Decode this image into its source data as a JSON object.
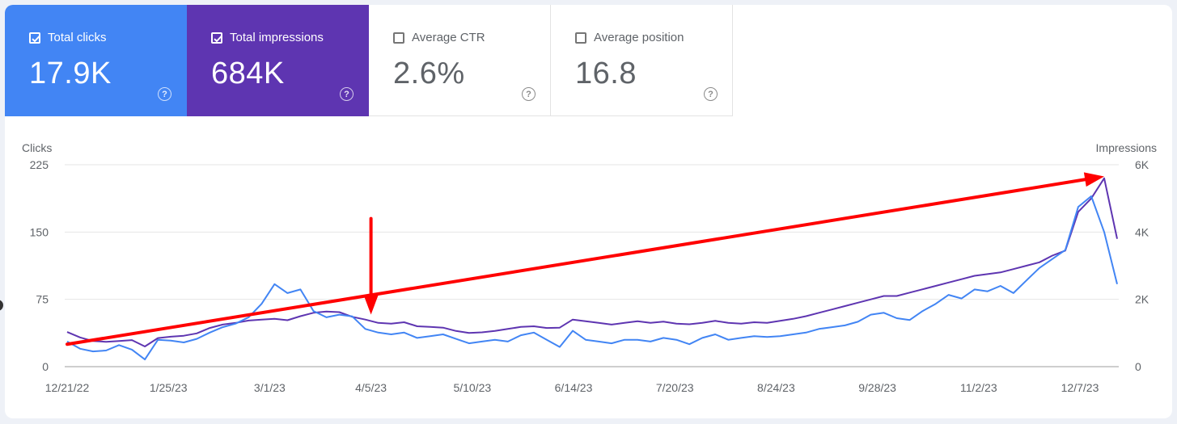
{
  "cards": [
    {
      "label": "Total clicks",
      "value": "17.9K",
      "checked": true
    },
    {
      "label": "Total impressions",
      "value": "684K",
      "checked": true
    },
    {
      "label": "Average CTR",
      "value": "2.6%",
      "checked": false
    },
    {
      "label": "Average position",
      "value": "16.8",
      "checked": false
    }
  ],
  "help_glyph": "?",
  "colors": {
    "clicks": "#4285f4",
    "impressions": "#5e35b1",
    "annotation": "#ff0000"
  },
  "chart_data": {
    "type": "line",
    "axes": {
      "left": {
        "label": "Clicks",
        "ticks": [
          "225",
          "150",
          "75",
          "0"
        ],
        "ylim": [
          0,
          225
        ]
      },
      "right": {
        "label": "Impressions",
        "ticks": [
          "6K",
          "4K",
          "2K",
          "0"
        ],
        "ylim": [
          0,
          6000
        ]
      }
    },
    "x_ticks": [
      "12/21/22",
      "1/25/23",
      "3/1/23",
      "4/5/23",
      "5/10/23",
      "6/14/23",
      "7/20/23",
      "8/24/23",
      "9/28/23",
      "11/2/23",
      "12/7/23"
    ],
    "series": [
      {
        "name": "Clicks",
        "axis": "left",
        "values": [
          28,
          20,
          17,
          18,
          24,
          19,
          8,
          30,
          29,
          27,
          31,
          38,
          44,
          48,
          55,
          70,
          92,
          82,
          86,
          62,
          55,
          58,
          56,
          42,
          38,
          36,
          38,
          32,
          34,
          36,
          31,
          26,
          28,
          30,
          28,
          35,
          38,
          30,
          22,
          40,
          30,
          28,
          26,
          30,
          30,
          28,
          32,
          30,
          25,
          32,
          36,
          30,
          32,
          34,
          33,
          34,
          36,
          38,
          42,
          44,
          46,
          50,
          58,
          60,
          54,
          52,
          62,
          70,
          80,
          76,
          86,
          84,
          90,
          82,
          96,
          110,
          120,
          130,
          178,
          190,
          150,
          92
        ]
      },
      {
        "name": "Impressions",
        "axis": "right",
        "values": [
          1030,
          870,
          760,
          740,
          760,
          790,
          600,
          850,
          890,
          920,
          990,
          1150,
          1250,
          1300,
          1370,
          1400,
          1420,
          1380,
          1500,
          1600,
          1640,
          1620,
          1480,
          1400,
          1300,
          1280,
          1320,
          1200,
          1180,
          1160,
          1060,
          1000,
          1020,
          1060,
          1120,
          1180,
          1200,
          1150,
          1160,
          1400,
          1350,
          1300,
          1250,
          1300,
          1350,
          1300,
          1340,
          1280,
          1260,
          1300,
          1360,
          1300,
          1280,
          1320,
          1300,
          1360,
          1420,
          1500,
          1600,
          1700,
          1800,
          1900,
          2000,
          2100,
          2100,
          2200,
          2300,
          2400,
          2500,
          2600,
          2700,
          2750,
          2800,
          2900,
          3000,
          3100,
          3300,
          3450,
          4600,
          5000,
          5600,
          3800
        ]
      }
    ],
    "annotations": [
      {
        "type": "arrow",
        "from": [
          "12/21/22",
          25
        ],
        "to": [
          "12/7/23",
          212
        ],
        "axis": "left"
      },
      {
        "type": "arrow",
        "from": [
          "4/5/23",
          165
        ],
        "to": [
          "4/5/23",
          58
        ],
        "axis": "left"
      }
    ]
  }
}
